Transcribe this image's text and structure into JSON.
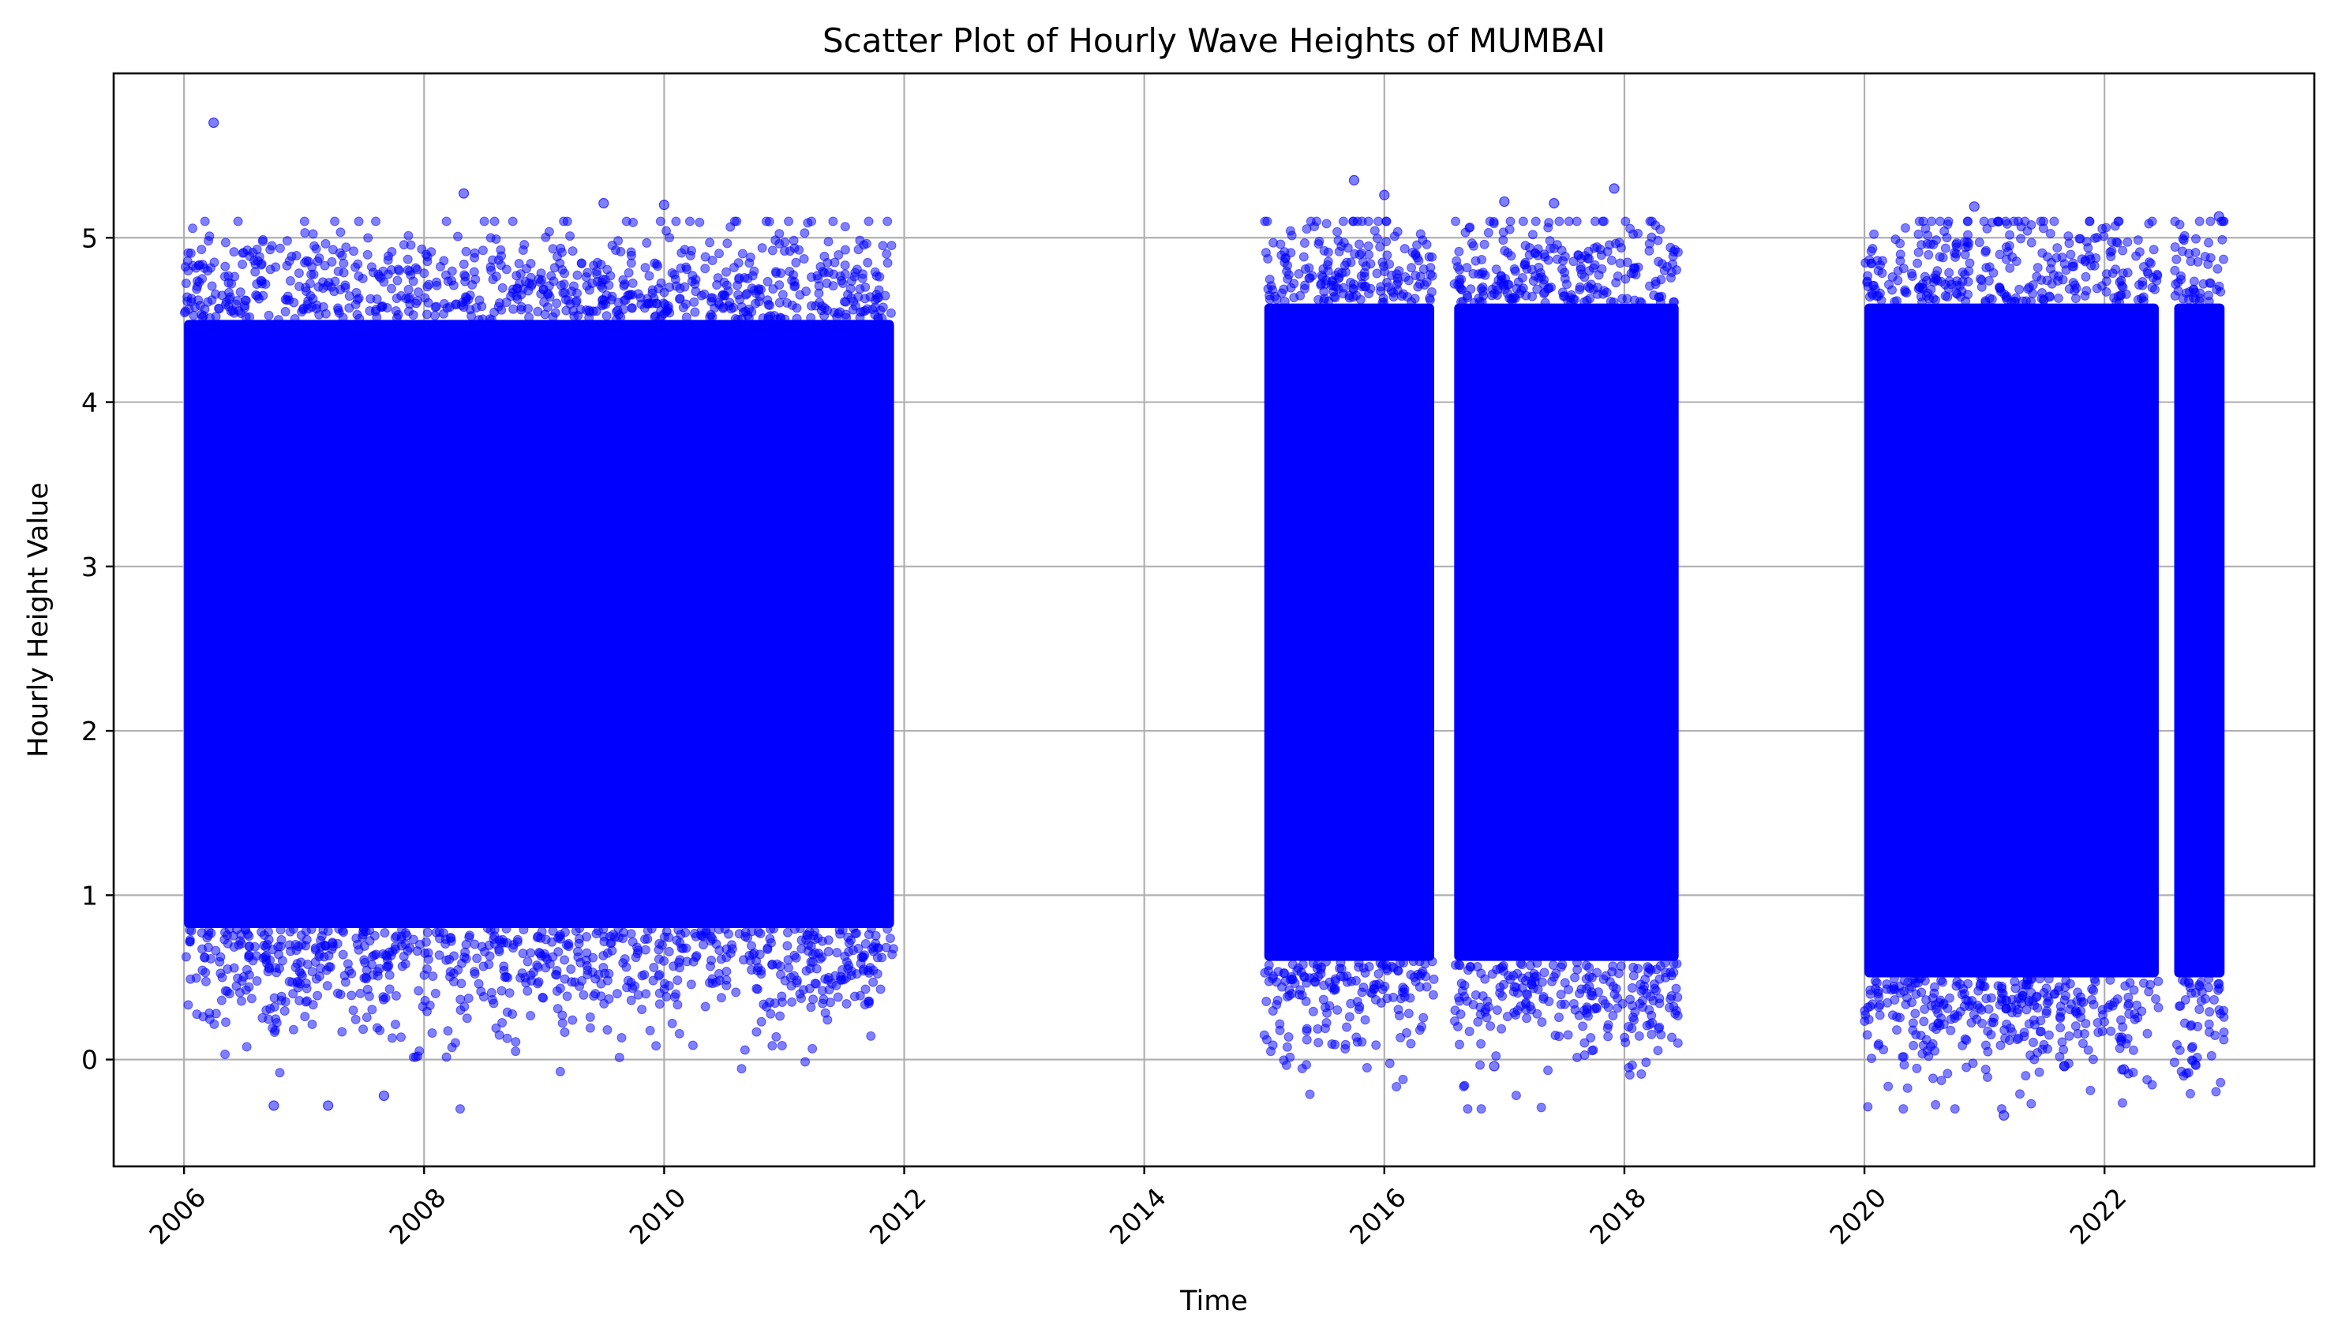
{
  "chart_data": {
    "type": "scatter",
    "title": "Scatter Plot of Hourly Wave Heights of MUMBAI",
    "xlabel": "Time",
    "ylabel": "Hourly Height Value",
    "x_axis_type": "date",
    "xlim": [
      "2005-06-01",
      "2023-10-01"
    ],
    "ylim": [
      -0.65,
      6.0
    ],
    "x_ticks": [
      "2006",
      "2008",
      "2010",
      "2012",
      "2014",
      "2016",
      "2018",
      "2020",
      "2022"
    ],
    "x_tick_rotation_deg": 45,
    "y_ticks": [
      0,
      1,
      2,
      3,
      4,
      5
    ],
    "grid": true,
    "marker_color": "#0000ff",
    "marker_alpha": 0.5,
    "series": [
      {
        "segments": [
          {
            "start": "2006-01-01",
            "end": "2011-12-01",
            "dense_min": 0.8,
            "dense_max": 4.5
          },
          {
            "start": "2015-01-01",
            "end": "2016-06-01",
            "dense_min": 0.6,
            "dense_max": 4.6
          },
          {
            "start": "2016-08-01",
            "end": "2018-06-15",
            "dense_min": 0.6,
            "dense_max": 4.6
          },
          {
            "start": "2020-01-01",
            "end": "2022-06-15",
            "dense_min": 0.5,
            "dense_max": 4.6
          },
          {
            "start": "2022-08-01",
            "end": "2023-01-01",
            "dense_min": 0.5,
            "dense_max": 4.6
          }
        ],
        "extremes": [
          {
            "x": "2006-04-01",
            "y": 5.7
          },
          {
            "x": "2008-05-01",
            "y": 5.27
          },
          {
            "x": "2009-07-01",
            "y": 5.21
          },
          {
            "x": "2010-01-01",
            "y": 5.2
          },
          {
            "x": "2015-10-01",
            "y": 5.35
          },
          {
            "x": "2016-01-01",
            "y": 5.26
          },
          {
            "x": "2017-01-01",
            "y": 5.22
          },
          {
            "x": "2017-06-01",
            "y": 5.21
          },
          {
            "x": "2017-12-01",
            "y": 5.3
          },
          {
            "x": "2020-12-01",
            "y": 5.19
          },
          {
            "x": "2022-12-15",
            "y": 5.13
          },
          {
            "x": "2006-10-01",
            "y": -0.28
          },
          {
            "x": "2007-03-15",
            "y": -0.28
          },
          {
            "x": "2007-09-01",
            "y": -0.22
          },
          {
            "x": "2016-12-01",
            "y": -0.04
          },
          {
            "x": "2021-03-01",
            "y": -0.34
          },
          {
            "x": "2021-09-01",
            "y": -0.04
          },
          {
            "x": "2022-03-01",
            "y": -0.06
          }
        ]
      }
    ]
  }
}
